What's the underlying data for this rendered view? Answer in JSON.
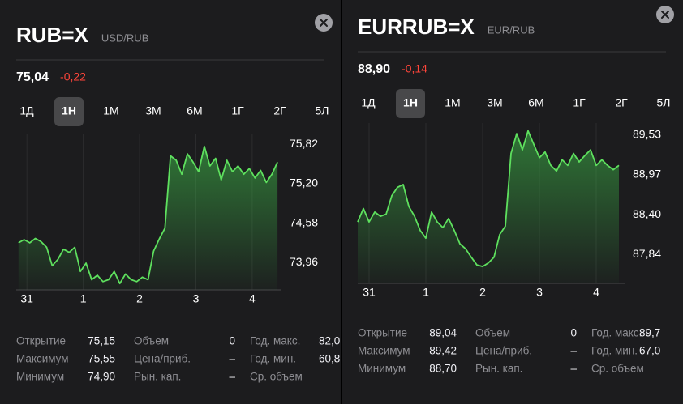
{
  "panels": [
    {
      "title": "RUB=X",
      "subtitle": "USD/RUB",
      "price": "75,04",
      "change": "-0,22",
      "periods": [
        "1Д",
        "1Н",
        "1М",
        "3М",
        "6М",
        "1Г",
        "2Г",
        "5Л"
      ],
      "selected_period": 1,
      "stats": [
        [
          {
            "label": "Открытие",
            "value": "75,15"
          },
          {
            "label": "Максимум",
            "value": "75,55"
          },
          {
            "label": "Минимум",
            "value": "74,90"
          }
        ],
        [
          {
            "label": "Объем",
            "value": "0"
          },
          {
            "label": "Цена/приб.",
            "value": "–"
          },
          {
            "label": "Рын. кап.",
            "value": "–"
          }
        ],
        [
          {
            "label": "Год. макс.",
            "value": "82,0"
          },
          {
            "label": "Год. мин.",
            "value": "60,8"
          },
          {
            "label": "Ср. объем"
          }
        ]
      ]
    },
    {
      "title": "EURRUB=X",
      "subtitle": "EUR/RUB",
      "price": "88,90",
      "change": "-0,14",
      "periods": [
        "1Д",
        "1Н",
        "1М",
        "3М",
        "6М",
        "1Г",
        "2Г",
        "5Л"
      ],
      "selected_period": 1,
      "stats": [
        [
          {
            "label": "Открытие",
            "value": "89,04"
          },
          {
            "label": "Максимум",
            "value": "89,42"
          },
          {
            "label": "Минимум",
            "value": "88,70"
          }
        ],
        [
          {
            "label": "Объем",
            "value": "0"
          },
          {
            "label": "Цена/приб.",
            "value": "–"
          },
          {
            "label": "Рын. кап.",
            "value": "–"
          }
        ],
        [
          {
            "label": "Год. макс.",
            "value": "89,7"
          },
          {
            "label": "Год. мин.",
            "value": "67,0"
          },
          {
            "label": "Ср. объем"
          }
        ]
      ]
    }
  ],
  "chart_data": [
    {
      "type": "line",
      "grid": true,
      "x": [
        -0.15,
        -0.05,
        0.05,
        0.15,
        0.25,
        0.35,
        0.45,
        0.55,
        0.65,
        0.75,
        0.85,
        0.95,
        1.05,
        1.15,
        1.25,
        1.35,
        1.45,
        1.55,
        1.65,
        1.75,
        1.85,
        1.95,
        2.05,
        2.15,
        2.25,
        2.35,
        2.45,
        2.55,
        2.65,
        2.75,
        2.85,
        2.95,
        3.05,
        3.15,
        3.25,
        3.35,
        3.45,
        3.55,
        3.65,
        3.75,
        3.85,
        3.95,
        4.05,
        4.15,
        4.25,
        4.35,
        4.45
      ],
      "series": [
        {
          "color": "#5ee05e",
          "values": [
            74.27,
            74.32,
            74.27,
            74.34,
            74.29,
            74.2,
            73.91,
            74.01,
            74.17,
            74.12,
            74.2,
            73.82,
            73.95,
            73.69,
            73.76,
            73.66,
            73.69,
            73.82,
            73.63,
            73.78,
            73.69,
            73.66,
            73.73,
            73.69,
            74.14,
            74.33,
            74.5,
            75.64,
            75.57,
            75.35,
            75.67,
            75.54,
            75.39,
            75.79,
            75.48,
            75.6,
            75.26,
            75.57,
            75.39,
            75.48,
            75.35,
            75.44,
            75.29,
            75.41,
            75.22,
            75.35,
            75.54
          ]
        }
      ],
      "xlim": [
        -0.19,
        4.52
      ],
      "xticks": [
        {
          "value": 0,
          "label": "31"
        },
        1,
        2,
        3,
        4
      ],
      "ylim": [
        73.53,
        75.99
      ],
      "yticks": [
        {
          "value": 75.82,
          "label": "75,82"
        },
        {
          "value": 75.2,
          "label": "75,20"
        },
        {
          "value": 74.58,
          "label": "74,58"
        },
        {
          "value": 73.96,
          "label": "73,96"
        }
      ]
    },
    {
      "type": "line",
      "grid": true,
      "x": [
        -0.2,
        -0.1,
        0,
        0.1,
        0.2,
        0.3,
        0.4,
        0.5,
        0.6,
        0.7,
        0.8,
        0.9,
        1,
        1.1,
        1.2,
        1.3,
        1.4,
        1.5,
        1.6,
        1.7,
        1.8,
        1.9,
        2,
        2.1,
        2.2,
        2.3,
        2.4,
        2.5,
        2.6,
        2.7,
        2.8,
        2.9,
        3,
        3.1,
        3.2,
        3.3,
        3.4,
        3.5,
        3.6,
        3.7,
        3.8,
        3.9,
        4,
        4.1,
        4.2,
        4.3,
        4.4
      ],
      "series": [
        {
          "color": "#5ee05e",
          "values": [
            88.3,
            88.49,
            88.3,
            88.44,
            88.38,
            88.41,
            88.67,
            88.79,
            88.83,
            88.52,
            88.38,
            88.18,
            88.07,
            88.44,
            88.3,
            88.22,
            88.35,
            88.18,
            87.99,
            87.92,
            87.8,
            87.69,
            87.67,
            87.72,
            87.8,
            88.12,
            88.24,
            89.27,
            89.55,
            89.32,
            89.59,
            89.4,
            89.21,
            89.29,
            89.1,
            89.02,
            89.18,
            89.1,
            89.27,
            89.15,
            89.24,
            89.32,
            89.1,
            89.18,
            89.1,
            89.04,
            89.1
          ]
        }
      ],
      "xlim": [
        -0.2,
        4.5
      ],
      "xticks": [
        {
          "value": 0,
          "label": "31"
        },
        1,
        2,
        3,
        4
      ],
      "ylim": [
        87.43,
        89.7
      ],
      "yticks": [
        {
          "value": 89.53,
          "label": "89,53"
        },
        {
          "value": 88.97,
          "label": "88,97"
        },
        {
          "value": 88.4,
          "label": "88,40"
        },
        {
          "value": 87.84,
          "label": "87,84"
        }
      ]
    }
  ]
}
